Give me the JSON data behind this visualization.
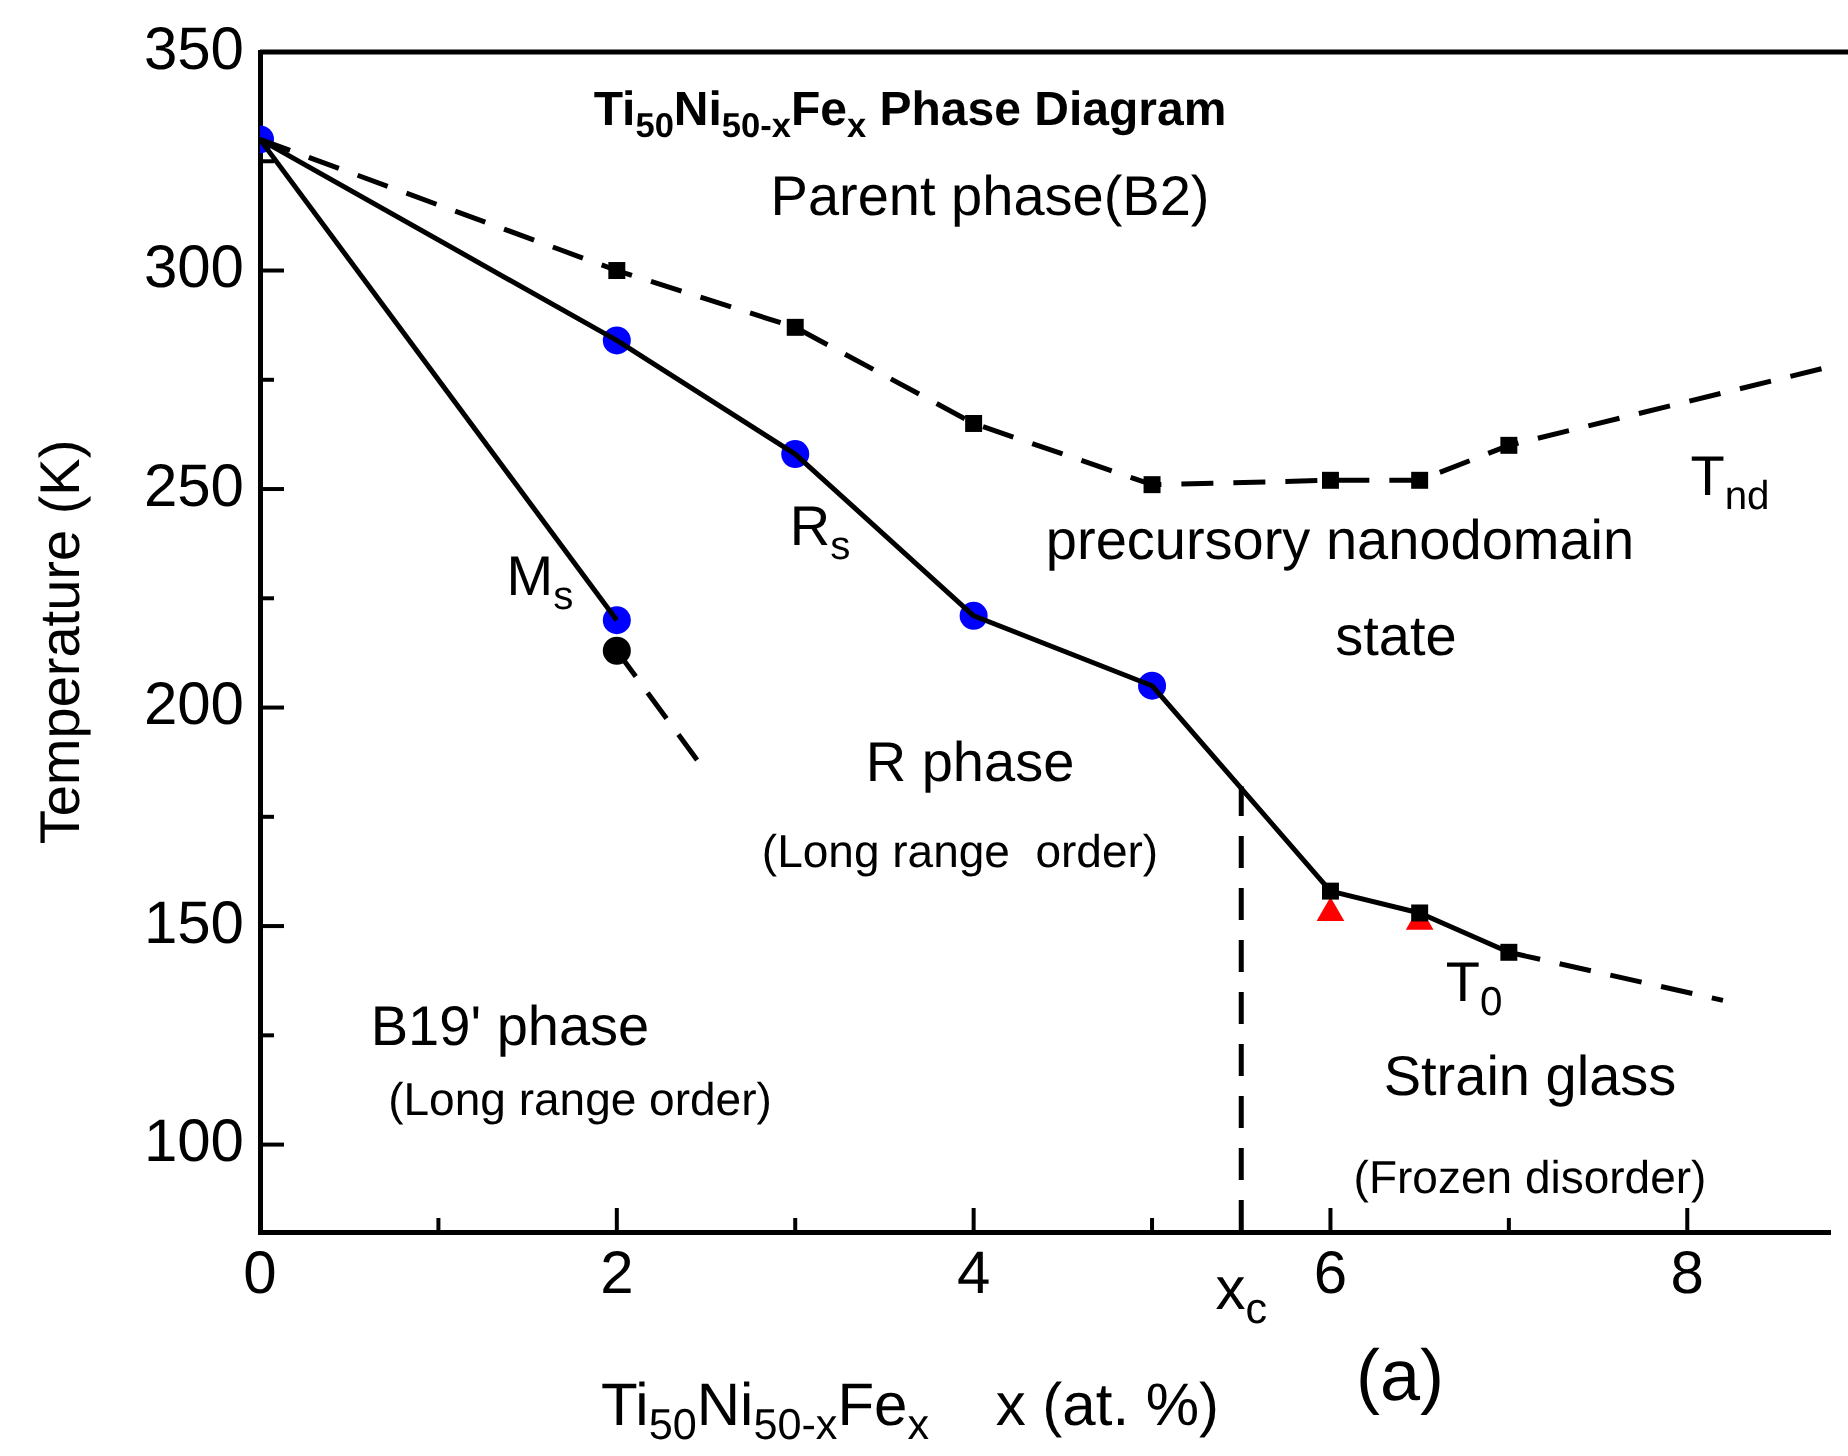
{
  "chart_data": {
    "type": "line",
    "title": "Ti$_{50}$Ni$_{50-x}$Fe$_{x}$ Phase Diagram",
    "xlabel": "Ti$_{50}$Ni$_{50-x}$Fe$_{x}$    x (at. %)",
    "ylabel": "Temperature (K)",
    "xlim": [
      0,
      8.8
    ],
    "xticks": [
      0,
      {
        "value": 1,
        "label": null
      },
      2,
      {
        "value": 3,
        "label": null
      },
      4,
      {
        "value": 5,
        "label": null
      },
      {
        "value": 5.5,
        "label": "x$_{c}$"
      },
      6,
      {
        "value": 7,
        "label": null
      },
      8
    ],
    "ylim": [
      80,
      350
    ],
    "yticks": [
      100,
      {
        "value": 125,
        "label": null
      },
      150,
      {
        "value": 175,
        "label": null
      },
      200,
      {
        "value": 225,
        "label": null
      },
      250,
      {
        "value": 275,
        "label": null
      },
      300,
      {
        "value": 325,
        "label": null
      },
      350
    ],
    "grid": false,
    "legend": false,
    "series": [
      {
        "color": "#000000",
        "line_style": "dashed",
        "marker": "none",
        "x": [
          0,
          2,
          3,
          4,
          5,
          6,
          6.5,
          7,
          8.8
        ],
        "values": [
          330,
          300,
          287,
          265,
          251,
          252,
          252,
          260,
          278
        ]
      },
      {
        "type": "scatter",
        "color": "#000000",
        "marker": "square",
        "x": [
          2,
          3,
          4,
          5,
          6,
          6.5,
          7
        ],
        "values": [
          300,
          287,
          265,
          251,
          252,
          252,
          260
        ]
      },
      {
        "color": "#000000",
        "line_style": "solid",
        "marker": "none",
        "x": [
          0,
          2,
          3,
          4,
          5,
          6,
          6.5,
          7
        ],
        "values": [
          330,
          284,
          258,
          221,
          205,
          158,
          153,
          144
        ]
      },
      {
        "color": "#000000",
        "line_style": "dashed",
        "marker": "none",
        "x": [
          7,
          8.2
        ],
        "values": [
          144,
          133
        ]
      },
      {
        "color": "#000000",
        "line_style": "solid",
        "marker": "none",
        "x": [
          0,
          2
        ],
        "values": [
          330,
          220
        ]
      },
      {
        "color": "#000000",
        "line_style": "dashed",
        "marker": "none",
        "x": [
          2,
          2.45
        ],
        "values": [
          213,
          188
        ]
      },
      {
        "color": "#000000",
        "line_style": "dashed",
        "marker": "none",
        "x": [
          5.5,
          5.5
        ],
        "values": [
          80,
          182
        ]
      },
      {
        "type": "scatter",
        "color": "#000000",
        "marker": "square",
        "x": [
          6,
          6.5,
          7
        ],
        "values": [
          158,
          153,
          144
        ]
      },
      {
        "type": "scatter",
        "color": "#ff0000",
        "marker": "triangle",
        "x": [
          6,
          6.5
        ],
        "values": [
          153,
          151
        ]
      },
      {
        "type": "scatter",
        "color": "#000000",
        "marker": "circle",
        "x": [
          2
        ],
        "values": [
          213
        ]
      },
      {
        "type": "scatter",
        "color": "#0000ff",
        "marker": "circle",
        "x": [
          0,
          2,
          3,
          4,
          5,
          2
        ],
        "values": [
          330,
          284,
          258,
          221,
          205,
          220
        ]
      }
    ],
    "annotations": [
      "Parent phase(B2)",
      "precursory nanodomain",
      "state",
      "R phase",
      "(Long range  order)",
      "B19' phase",
      "(Long range order)",
      "Strain glass",
      "(Frozen disorder)",
      "T$_{nd}$",
      "R$_{s}$",
      "M$_{s}$",
      "T$_{0}$",
      "(a)"
    ]
  }
}
